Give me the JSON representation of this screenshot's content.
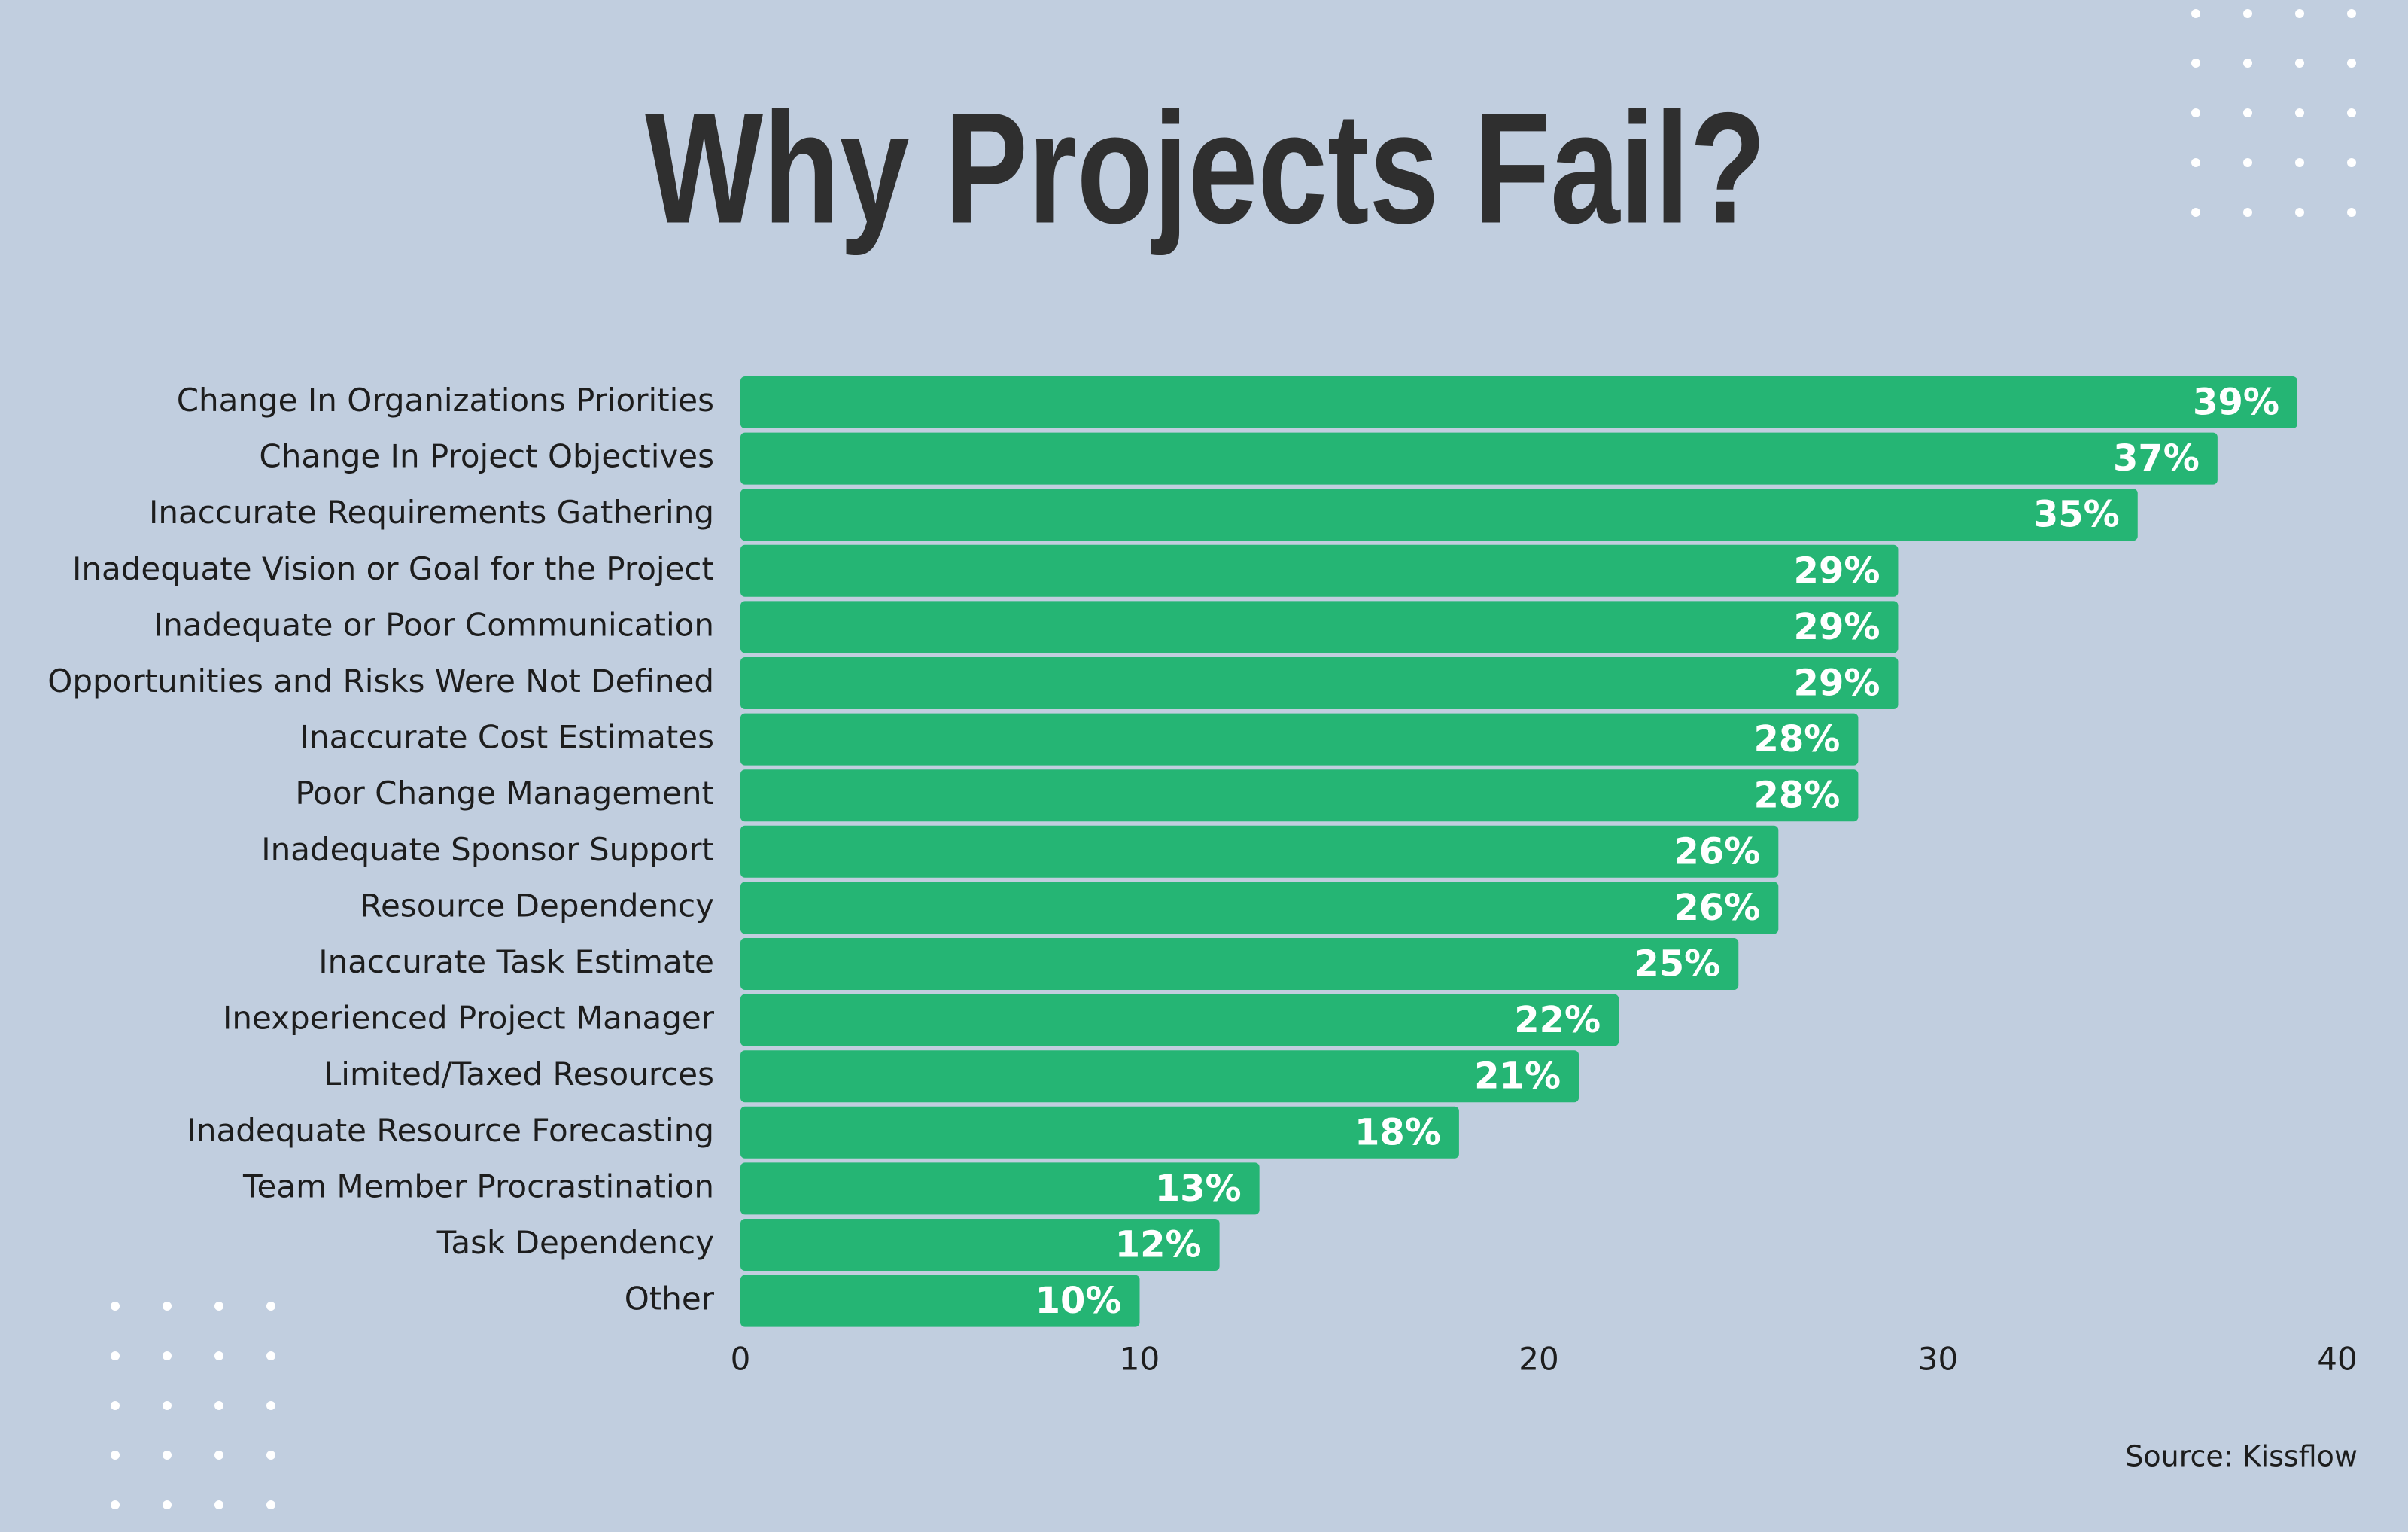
{
  "chart_data": {
    "type": "bar",
    "title": "Why Projects Fail?",
    "categories": [
      "Change In Organizations Priorities",
      "Change In Project Objectives",
      "Inaccurate Requirements Gathering",
      "Inadequate Vision or Goal for the Project",
      "Inadequate or Poor Communication",
      "Opportunities and Risks Were Not Defined",
      "Inaccurate Cost Estimates",
      "Poor Change Management",
      "Inadequate Sponsor Support",
      "Resource Dependency",
      "Inaccurate Task Estimate",
      "Inexperienced Project Manager",
      "Limited/Taxed Resources",
      "Inadequate Resource Forecasting",
      "Team Member Procrastination",
      "Task Dependency",
      "Other"
    ],
    "values": [
      39,
      37,
      35,
      29,
      29,
      29,
      28,
      28,
      26,
      26,
      25,
      22,
      21,
      18,
      13,
      12,
      10
    ],
    "value_labels": [
      "39%",
      "37%",
      "35%",
      "29%",
      "29%",
      "29%",
      "28%",
      "28%",
      "26%",
      "26%",
      "25%",
      "22%",
      "21%",
      "18%",
      "13%",
      "12%",
      "10%"
    ],
    "color": "#25b574",
    "xlim": [
      0,
      40
    ],
    "xticks": [
      0,
      10,
      20,
      30,
      40
    ],
    "source": "Source: Kissflow"
  }
}
